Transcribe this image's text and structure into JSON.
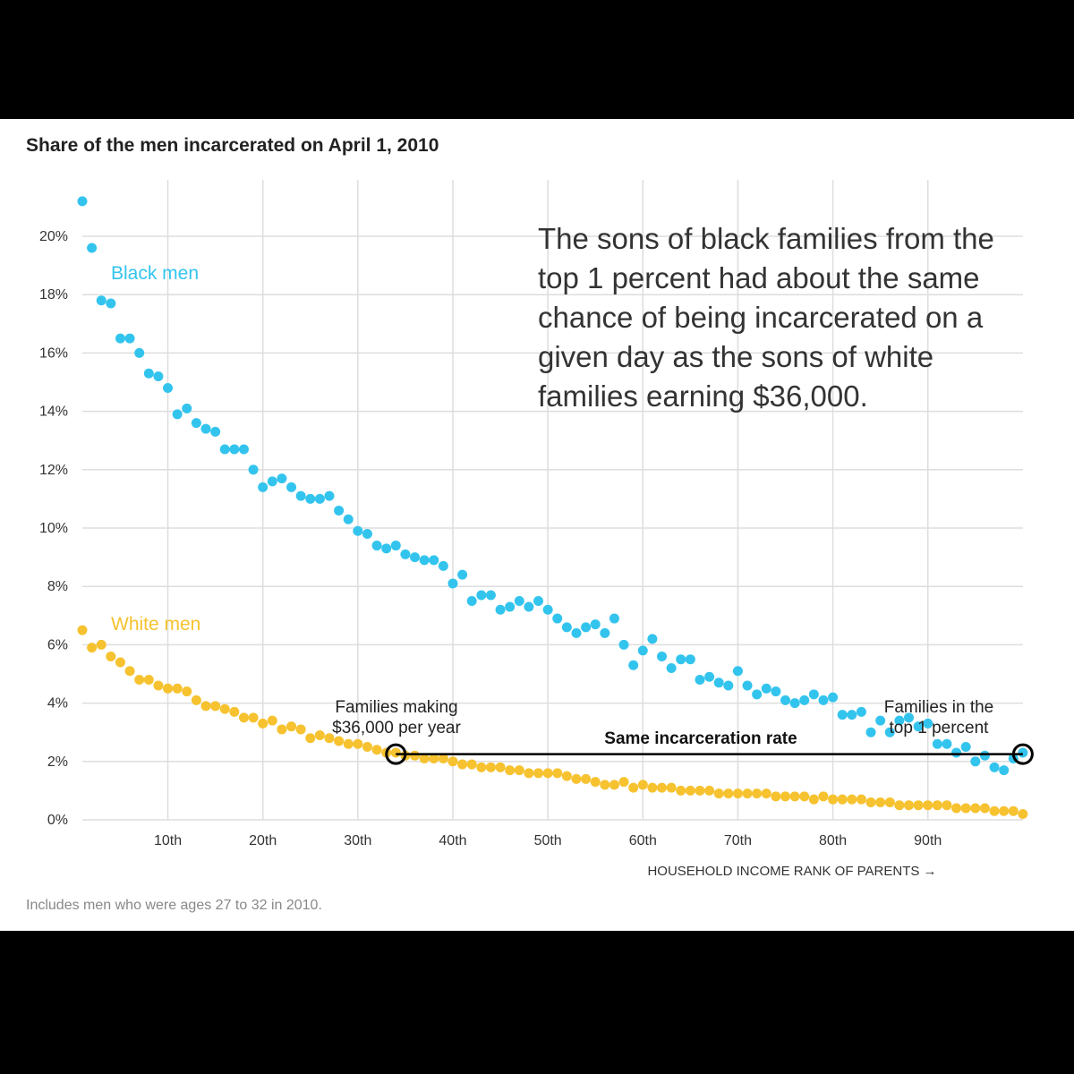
{
  "colors": {
    "black_men": "#33c4ee",
    "white_men": "#f6c22f",
    "grid": "#dddddd",
    "background": "#ffffff",
    "frame": "#000000"
  },
  "chart_data": {
    "type": "scatter",
    "title": "Share of the men incarcerated on April 1, 2010",
    "xlabel": "HOUSEHOLD INCOME RANK OF PARENTS →",
    "ylabel": "",
    "xlim": [
      1,
      100
    ],
    "ylim": [
      0,
      21
    ],
    "x_ticks": [
      10,
      20,
      30,
      40,
      50,
      60,
      70,
      80,
      90
    ],
    "x_tick_labels": [
      "10th",
      "20th",
      "30th",
      "40th",
      "50th",
      "60th",
      "70th",
      "80th",
      "90th"
    ],
    "y_ticks": [
      0,
      2,
      4,
      6,
      8,
      10,
      12,
      14,
      16,
      18,
      20
    ],
    "y_tick_labels": [
      "0%",
      "2%",
      "4%",
      "6%",
      "8%",
      "10%",
      "12%",
      "14%",
      "16%",
      "18%",
      "20%"
    ],
    "grid": true,
    "note": "Includes men who were ages 27 to 32 in 2010.",
    "series": [
      {
        "name": "Black men",
        "x": [
          1,
          2,
          3,
          4,
          5,
          6,
          7,
          8,
          9,
          10,
          11,
          12,
          13,
          14,
          15,
          16,
          17,
          18,
          19,
          20,
          21,
          22,
          23,
          24,
          25,
          26,
          27,
          28,
          29,
          30,
          31,
          32,
          33,
          34,
          35,
          36,
          37,
          38,
          39,
          40,
          41,
          42,
          43,
          44,
          45,
          46,
          47,
          48,
          49,
          50,
          51,
          52,
          53,
          54,
          55,
          56,
          57,
          58,
          59,
          60,
          61,
          62,
          63,
          64,
          65,
          66,
          67,
          68,
          69,
          70,
          71,
          72,
          73,
          74,
          75,
          76,
          77,
          78,
          79,
          80,
          81,
          82,
          83,
          84,
          85,
          86,
          87,
          88,
          89,
          90,
          91,
          92,
          93,
          94,
          95,
          96,
          97,
          98,
          99,
          100
        ],
        "values": [
          21.2,
          19.6,
          17.8,
          17.7,
          16.5,
          16.5,
          16.0,
          15.3,
          15.2,
          14.8,
          13.9,
          14.1,
          13.6,
          13.4,
          13.3,
          12.7,
          12.7,
          12.7,
          12.0,
          11.4,
          11.6,
          11.7,
          11.4,
          11.1,
          11.0,
          11.0,
          11.1,
          10.6,
          10.3,
          9.9,
          9.8,
          9.4,
          9.3,
          9.4,
          9.1,
          9.0,
          8.9,
          8.9,
          8.7,
          8.1,
          8.4,
          7.5,
          7.7,
          7.7,
          7.2,
          7.3,
          7.5,
          7.3,
          7.5,
          7.2,
          6.9,
          6.6,
          6.4,
          6.6,
          6.7,
          6.4,
          6.9,
          6.0,
          5.3,
          5.8,
          6.2,
          5.6,
          5.2,
          5.5,
          5.5,
          4.8,
          4.9,
          4.7,
          4.6,
          5.1,
          4.6,
          4.3,
          4.5,
          4.4,
          4.1,
          4.0,
          4.1,
          4.3,
          4.1,
          4.2,
          3.6,
          3.6,
          3.7,
          3.0,
          3.4,
          3.0,
          3.4,
          3.5,
          3.2,
          3.3,
          2.6,
          2.6,
          2.3,
          2.5,
          2.0,
          2.2,
          1.8,
          1.7,
          2.1,
          2.3
        ]
      },
      {
        "name": "White men",
        "x": [
          1,
          2,
          3,
          4,
          5,
          6,
          7,
          8,
          9,
          10,
          11,
          12,
          13,
          14,
          15,
          16,
          17,
          18,
          19,
          20,
          21,
          22,
          23,
          24,
          25,
          26,
          27,
          28,
          29,
          30,
          31,
          32,
          33,
          34,
          35,
          36,
          37,
          38,
          39,
          40,
          41,
          42,
          43,
          44,
          45,
          46,
          47,
          48,
          49,
          50,
          51,
          52,
          53,
          54,
          55,
          56,
          57,
          58,
          59,
          60,
          61,
          62,
          63,
          64,
          65,
          66,
          67,
          68,
          69,
          70,
          71,
          72,
          73,
          74,
          75,
          76,
          77,
          78,
          79,
          80,
          81,
          82,
          83,
          84,
          85,
          86,
          87,
          88,
          89,
          90,
          91,
          92,
          93,
          94,
          95,
          96,
          97,
          98,
          99,
          100
        ],
        "values": [
          6.5,
          5.9,
          6.0,
          5.6,
          5.4,
          5.1,
          4.8,
          4.8,
          4.6,
          4.5,
          4.5,
          4.4,
          4.1,
          3.9,
          3.9,
          3.8,
          3.7,
          3.5,
          3.5,
          3.3,
          3.4,
          3.1,
          3.2,
          3.1,
          2.8,
          2.9,
          2.8,
          2.7,
          2.6,
          2.6,
          2.5,
          2.4,
          2.3,
          2.3,
          2.2,
          2.2,
          2.1,
          2.1,
          2.1,
          2.0,
          1.9,
          1.9,
          1.8,
          1.8,
          1.8,
          1.7,
          1.7,
          1.6,
          1.6,
          1.6,
          1.6,
          1.5,
          1.4,
          1.4,
          1.3,
          1.2,
          1.2,
          1.3,
          1.1,
          1.2,
          1.1,
          1.1,
          1.1,
          1.0,
          1.0,
          1.0,
          1.0,
          0.9,
          0.9,
          0.9,
          0.9,
          0.9,
          0.9,
          0.8,
          0.8,
          0.8,
          0.8,
          0.7,
          0.8,
          0.7,
          0.7,
          0.7,
          0.7,
          0.6,
          0.6,
          0.6,
          0.5,
          0.5,
          0.5,
          0.5,
          0.5,
          0.5,
          0.4,
          0.4,
          0.4,
          0.4,
          0.3,
          0.3,
          0.3,
          0.2
        ]
      }
    ],
    "annotations": {
      "headline": [
        "The sons of black families from the",
        "top 1 percent had about the same",
        "chance of being incarcerated on a",
        "given day as the sons of white",
        "families earning $36,000."
      ],
      "left_marker_label": [
        "Families making",
        "$36,000 per year"
      ],
      "right_marker_label": [
        "Families in the",
        "top 1 percent"
      ],
      "connector_label": "Same incarceration rate",
      "connector_value": 2.25,
      "left_marker_x": 34,
      "right_marker_x": 100
    }
  }
}
